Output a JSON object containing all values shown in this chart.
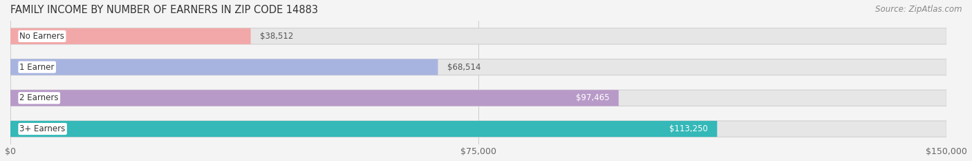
{
  "title": "FAMILY INCOME BY NUMBER OF EARNERS IN ZIP CODE 14883",
  "source": "Source: ZipAtlas.com",
  "categories": [
    "No Earners",
    "1 Earner",
    "2 Earners",
    "3+ Earners"
  ],
  "values": [
    38512,
    68514,
    97465,
    113250
  ],
  "labels": [
    "$38,512",
    "$68,514",
    "$97,465",
    "$113,250"
  ],
  "bar_colors": [
    "#f2a8a8",
    "#a8b4e0",
    "#b89ac8",
    "#34b8b8"
  ],
  "background_color": "#f4f4f4",
  "track_color": "#e6e6e6",
  "track_border_color": "#d0d0d0",
  "xlim": [
    0,
    150000
  ],
  "xticks": [
    0,
    75000,
    150000
  ],
  "xticklabels": [
    "$0",
    "$75,000",
    "$150,000"
  ],
  "title_fontsize": 10.5,
  "source_fontsize": 8.5,
  "label_fontsize": 8.5,
  "category_fontsize": 8.5,
  "bar_height": 0.52,
  "fig_width": 14.06,
  "fig_height": 2.33,
  "label_inside_threshold": 90000,
  "label_inside_color": "white",
  "label_outside_color": "#555555"
}
